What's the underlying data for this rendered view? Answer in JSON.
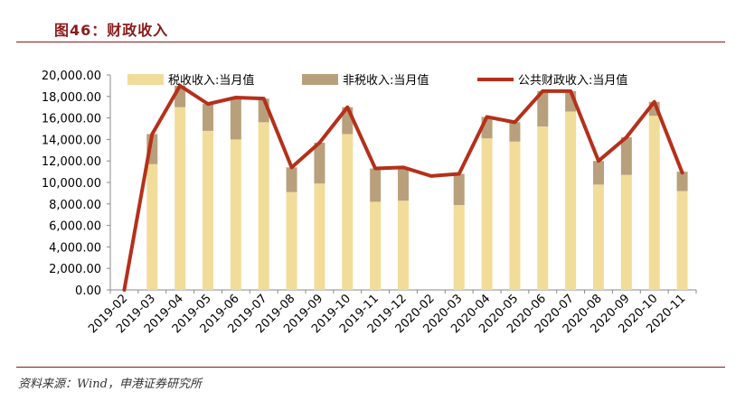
{
  "figure": {
    "title": "图46：财政收入",
    "source": "资料来源：Wind，申港证券研究所"
  },
  "chart_data": {
    "type": "bar",
    "stacked": true,
    "categories": [
      "2019-02",
      "2019-03",
      "2019-04",
      "2019-05",
      "2019-06",
      "2019-07",
      "2019-08",
      "2019-09",
      "2019-10",
      "2019-11",
      "2019-12",
      "2020-02",
      "2020-03",
      "2020-04",
      "2020-05",
      "2020-06",
      "2020-07",
      "2020-08",
      "2020-09",
      "2020-10",
      "2020-11"
    ],
    "series": [
      {
        "name": "税收收入:当月值",
        "kind": "bar",
        "color": "#f2dc9a",
        "values": [
          0,
          11700,
          17000,
          14800,
          14000,
          15600,
          9100,
          9900,
          14500,
          8200,
          8300,
          null,
          7900,
          14100,
          13800,
          15200,
          16600,
          9800,
          10700,
          16200,
          9200
        ]
      },
      {
        "name": "非税收入:当月值",
        "kind": "bar",
        "color": "#b8a07c",
        "values": [
          0,
          2800,
          2000,
          2500,
          3900,
          2200,
          2300,
          3800,
          2500,
          3100,
          3100,
          null,
          2900,
          2000,
          1800,
          3300,
          1900,
          2200,
          3500,
          1300,
          1800
        ]
      },
      {
        "name": "公共财政收入:当月值",
        "kind": "line",
        "color": "#b5301a",
        "values": [
          0,
          14500,
          19000,
          17300,
          17900,
          17800,
          11400,
          13700,
          17000,
          11300,
          11400,
          10600,
          10800,
          16100,
          15600,
          18500,
          18500,
          12000,
          14200,
          17500,
          10900
        ]
      }
    ],
    "y_ticks": [
      "0.00",
      "2,000.00",
      "4,000.00",
      "6,000.00",
      "8,000.00",
      "10,000.00",
      "12,000.00",
      "14,000.00",
      "16,000.00",
      "18,000.00",
      "20,000.00"
    ],
    "ylim": [
      0,
      20000
    ],
    "grid": false,
    "legend_position": "top"
  }
}
